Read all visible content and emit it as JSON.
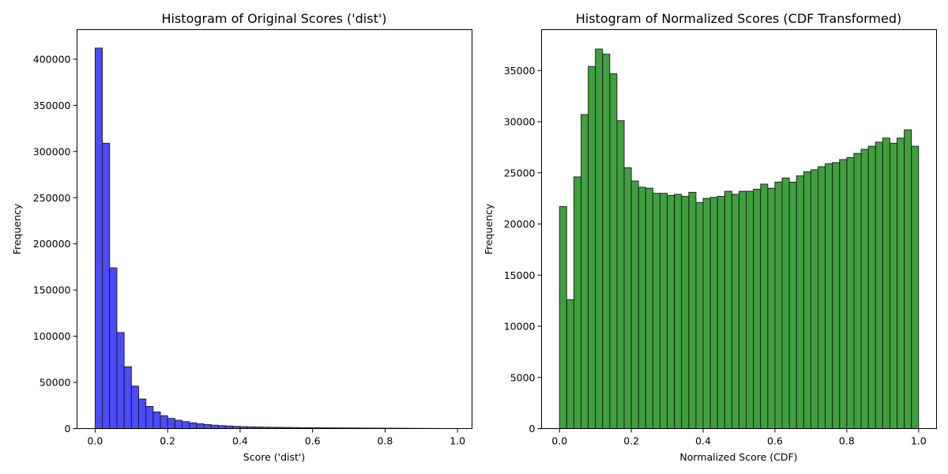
{
  "chart_data": [
    {
      "type": "bar",
      "title": "Histogram of Original Scores ('dist')",
      "xlabel": "Score ('dist')",
      "ylabel": "Frequency",
      "xlim": [
        -0.05,
        1.04
      ],
      "ylim": [
        0,
        432000
      ],
      "xticks": [
        0.0,
        0.2,
        0.4,
        0.6,
        0.8,
        1.0
      ],
      "xtick_labels": [
        "0.0",
        "0.2",
        "0.4",
        "0.6",
        "0.8",
        "1.0"
      ],
      "yticks": [
        0,
        50000,
        100000,
        150000,
        200000,
        250000,
        300000,
        350000,
        400000
      ],
      "ytick_labels": [
        "0",
        "50000",
        "100000",
        "150000",
        "200000",
        "250000",
        "300000",
        "350000",
        "400000"
      ],
      "grid": false,
      "bar_color": "#0000ff",
      "bar_alpha": 0.7,
      "bin_start": 0.0,
      "bin_width": 0.02,
      "values": [
        412000,
        309000,
        174000,
        104000,
        67000,
        46000,
        32000,
        24000,
        18000,
        14000,
        11000,
        9000,
        7500,
        6200,
        5200,
        4400,
        3700,
        3200,
        2800,
        2400,
        2100,
        1900,
        1700,
        1500,
        1400,
        1300,
        1200,
        1100,
        1000,
        950,
        900,
        850,
        800,
        750,
        700,
        650,
        600,
        550,
        500,
        450,
        420,
        380,
        350,
        300,
        250,
        200,
        150,
        120,
        90,
        60
      ]
    },
    {
      "type": "bar",
      "title": "Histogram of Normalized Scores (CDF Transformed)",
      "xlabel": "Normalized Score (CDF)",
      "ylabel": "Frequency",
      "xlim": [
        -0.05,
        1.05
      ],
      "ylim": [
        0,
        39000
      ],
      "xticks": [
        0.0,
        0.2,
        0.4,
        0.6,
        0.8,
        1.0
      ],
      "xtick_labels": [
        "0.0",
        "0.2",
        "0.4",
        "0.6",
        "0.8",
        "1.0"
      ],
      "yticks": [
        0,
        5000,
        10000,
        15000,
        20000,
        25000,
        30000,
        35000
      ],
      "ytick_labels": [
        "0",
        "5000",
        "10000",
        "15000",
        "20000",
        "25000",
        "30000",
        "35000"
      ],
      "grid": false,
      "bar_color": "#008000",
      "bar_alpha": 0.75,
      "bin_start": 0.0,
      "bin_width": 0.02,
      "values": [
        21700,
        12600,
        24600,
        30700,
        35400,
        37100,
        36600,
        34700,
        30100,
        25500,
        24200,
        23600,
        23500,
        23000,
        23000,
        22800,
        22900,
        22700,
        23100,
        22100,
        22500,
        22600,
        22700,
        23200,
        22900,
        23200,
        23200,
        23400,
        23900,
        23500,
        24100,
        24500,
        24100,
        24700,
        25100,
        25300,
        25600,
        25900,
        26000,
        26300,
        26500,
        26900,
        27300,
        27600,
        28000,
        28400,
        27900,
        28400,
        29200,
        27600
      ]
    }
  ]
}
